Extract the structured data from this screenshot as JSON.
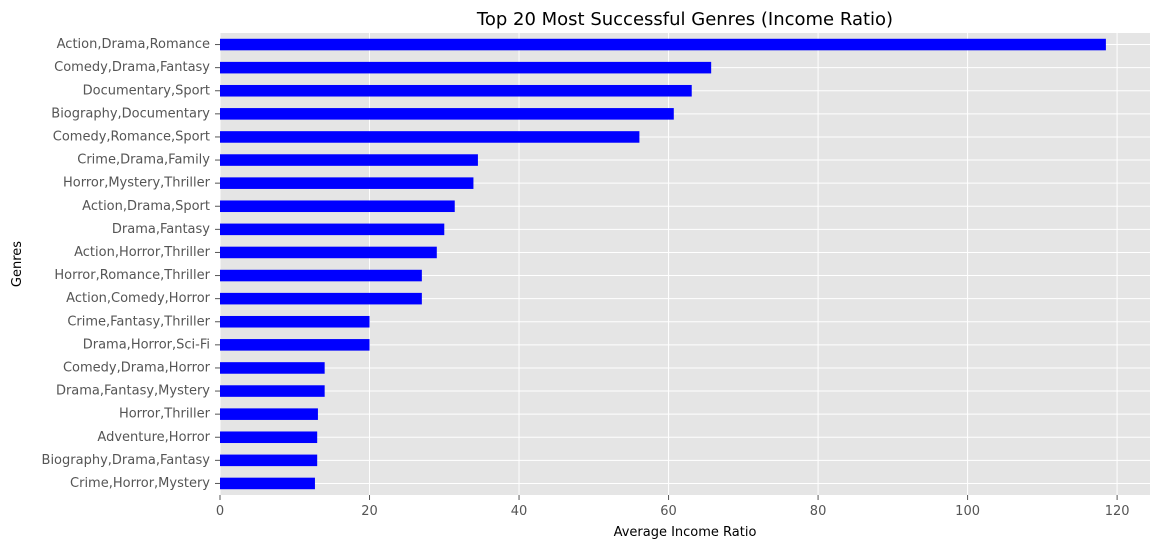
{
  "chart_data": {
    "type": "bar",
    "orientation": "horizontal",
    "title": "Top 20 Most Successful Genres (Income Ratio)",
    "xlabel": "Average Income Ratio",
    "ylabel": "Genres",
    "xlim": [
      0,
      124.4
    ],
    "xticks": [
      0,
      20,
      40,
      60,
      80,
      100,
      120
    ],
    "grid": true,
    "bar_color": "#0000ff",
    "background_color": "#e5e5e5",
    "grid_color": "#ffffff",
    "categories": [
      "Action,Drama,Romance",
      "Comedy,Drama,Fantasy",
      "Documentary,Sport",
      "Biography,Documentary",
      "Comedy,Romance,Sport",
      "Crime,Drama,Family",
      "Horror,Mystery,Thriller",
      "Action,Drama,Sport",
      "Drama,Fantasy",
      "Action,Horror,Thriller",
      "Horror,Romance,Thriller",
      "Action,Comedy,Horror",
      "Crime,Fantasy,Thriller",
      "Drama,Horror,Sci-Fi",
      "Comedy,Drama,Horror",
      "Drama,Fantasy,Mystery",
      "Horror,Thriller",
      "Adventure,Horror",
      "Biography,Drama,Fantasy",
      "Crime,Horror,Mystery"
    ],
    "values": [
      118.5,
      65.7,
      63.1,
      60.7,
      56.1,
      34.5,
      33.9,
      31.4,
      30.0,
      29.0,
      27.0,
      27.0,
      20.0,
      20.0,
      14.0,
      14.0,
      13.1,
      13.0,
      13.0,
      12.7
    ]
  }
}
